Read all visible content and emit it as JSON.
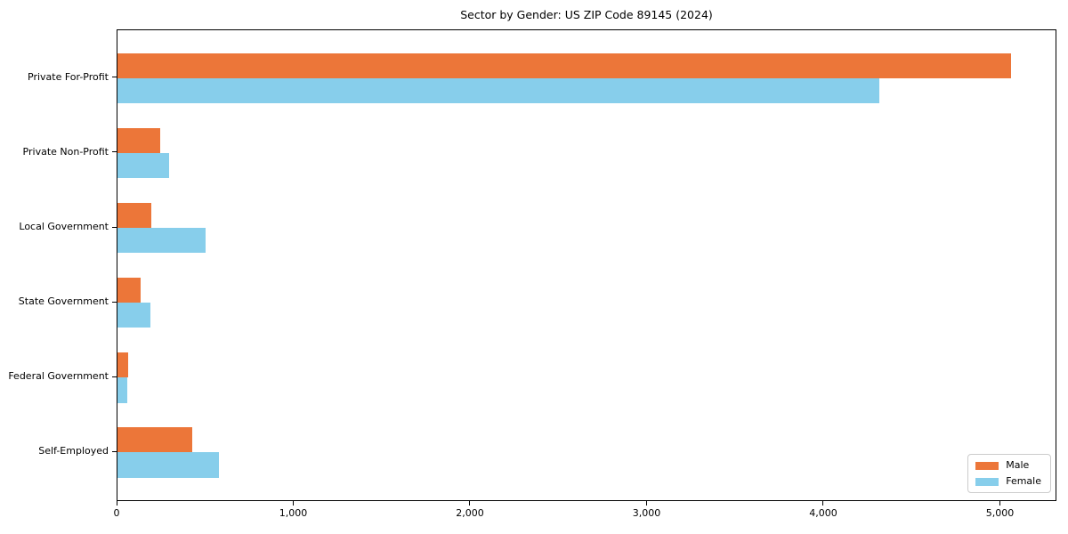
{
  "chart_data": {
    "type": "bar",
    "orientation": "horizontal",
    "title": "Sector by Gender: US ZIP Code 89145 (2024)",
    "xlabel": "",
    "ylabel": "",
    "categories": [
      "Private For-Profit",
      "Private Non-Profit",
      "Local Government",
      "State Government",
      "Federal Government",
      "Self-Employed"
    ],
    "series": [
      {
        "name": "Male",
        "color": "#EC7639",
        "values": [
          5060,
          240,
          190,
          130,
          60,
          425
        ]
      },
      {
        "name": "Female",
        "color": "#87CEEB",
        "values": [
          4310,
          290,
          500,
          185,
          55,
          575
        ]
      }
    ],
    "xlim": [
      0,
      5320
    ],
    "xticks": [
      0,
      1000,
      2000,
      3000,
      4000,
      5000
    ],
    "xtick_labels": [
      "0",
      "1,000",
      "2,000",
      "3,000",
      "4,000",
      "5,000"
    ],
    "legend_position": "lower right",
    "grid": false,
    "background_color": "#ffffff",
    "spine_color": "#000000"
  }
}
